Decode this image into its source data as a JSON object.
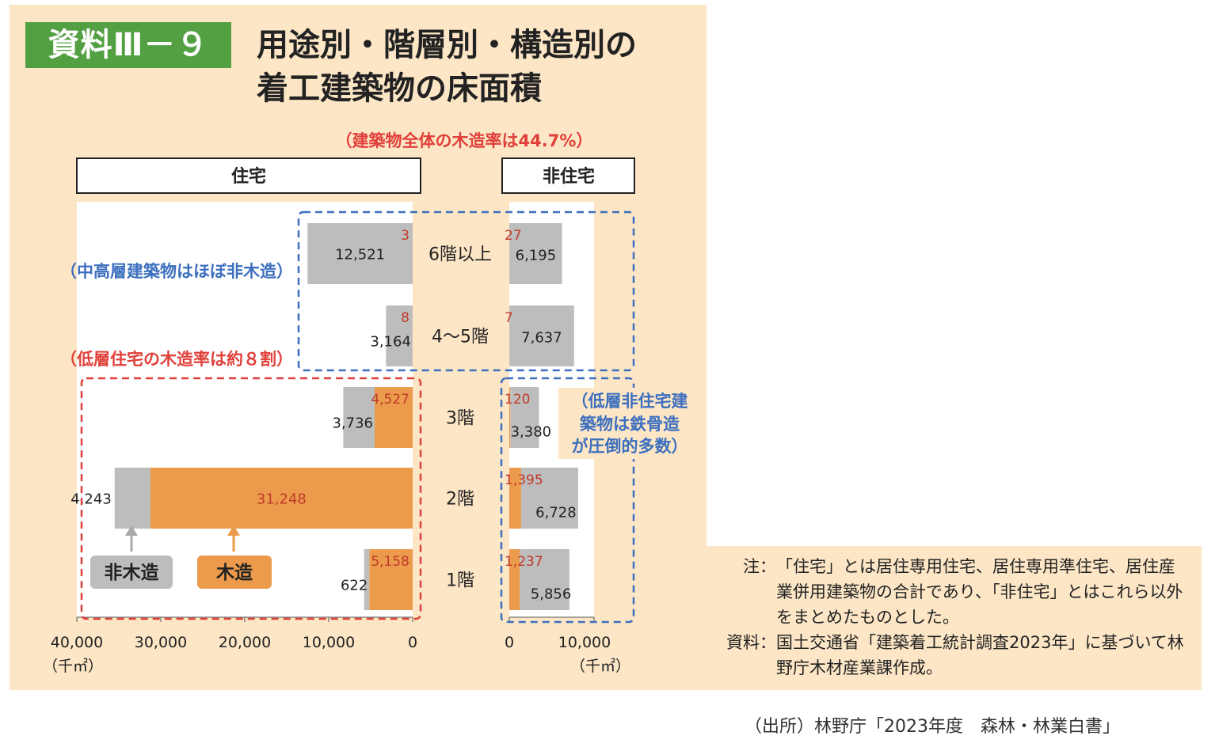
{
  "header": {
    "badge": "資料Ⅲ－９",
    "title_line1": "用途別・階層別・構造別の",
    "title_line2": "着工建築物の床面積"
  },
  "annotations": {
    "overall_wood_rate": "（建築物全体の木造率は44.7%）",
    "high_rise": "（中高層建築物はほぼ非木造）",
    "low_rise_housing": "（低層住宅の木造率は約８割）",
    "low_rise_nonres_1": "（低層非住宅建",
    "low_rise_nonres_2": "築物は鉄骨造",
    "low_rise_nonres_3": "が圧倒的多数）"
  },
  "legend": {
    "non_wood": "非木造",
    "wood": "木造"
  },
  "colors": {
    "non_wood": "#bdbdbd",
    "wood": "#ec9b4c",
    "wood_label": "#c0392b",
    "blue_box": "#3d6fbf",
    "red_box": "#e0403a",
    "panel": "#fce6c6"
  },
  "chart_data": {
    "type": "bar",
    "orientation": "horizontal-butterfly",
    "unit": "（千㎡）",
    "categories": [
      "6階以上",
      "4〜5階",
      "3階",
      "2階",
      "1階"
    ],
    "panels": [
      {
        "name": "住宅",
        "direction": "left",
        "xlim": [
          0,
          40000
        ],
        "ticks": [
          40000,
          30000,
          20000,
          10000,
          0
        ],
        "tick_labels": [
          "40,000",
          "30,000",
          "20,000",
          "10,000",
          "0"
        ],
        "series": [
          {
            "name": "木造",
            "values": [
              3,
              8,
              4527,
              31248,
              5158
            ],
            "labels": [
              "3",
              "8",
              "4,527",
              "31,248",
              "5,158"
            ]
          },
          {
            "name": "非木造",
            "values": [
              12521,
              3164,
              3736,
              4243,
              622
            ],
            "labels": [
              "12,521",
              "3,164",
              "3,736",
              "4,243",
              "622"
            ]
          }
        ]
      },
      {
        "name": "非住宅",
        "direction": "right",
        "xlim": [
          0,
          10000
        ],
        "ticks": [
          0,
          10000
        ],
        "tick_labels": [
          "0",
          "10,000"
        ],
        "series": [
          {
            "name": "木造",
            "values": [
              27,
              7,
              120,
              1395,
              1237
            ],
            "labels": [
              "27",
              "7",
              "120",
              "1,395",
              "1,237"
            ]
          },
          {
            "name": "非木造",
            "values": [
              6195,
              7637,
              3380,
              6728,
              5856
            ],
            "labels": [
              "6,195",
              "7,637",
              "3,380",
              "6,728",
              "5,856"
            ]
          }
        ]
      }
    ]
  },
  "notes": {
    "note_key": "注：",
    "note_text": "「住宅」とは居住専用住宅、居住専用準住宅、居住産業併用建築物の合計であり、「非住宅」とはこれら以外をまとめたものとした。",
    "source_key": "資料：",
    "source_text": "国土交通省「建築着工統計調査2023年」に基づいて林野庁木材産業課作成。"
  },
  "footer": "（出所）林野庁「2023年度　森林・林業白書」"
}
